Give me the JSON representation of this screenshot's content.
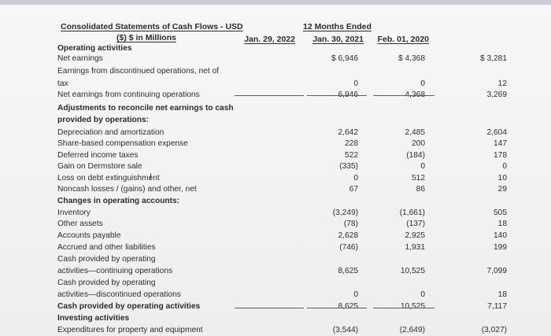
{
  "header": {
    "title_line1": "Consolidated Statements of Cash Flows - USD",
    "title_line2": "($) $ in Millions",
    "period_group": "12 Months Ended",
    "col1": "Jan. 29, 2022",
    "col2": "Jan. 30, 2021",
    "col3": "Feb. 01, 2020"
  },
  "rows": [
    {
      "label": "Operating activities",
      "bold": true,
      "c1": "",
      "c2": "",
      "c3": ""
    },
    {
      "label": "Net earnings",
      "bold": false,
      "c1": "$ 6,946",
      "c2": "$ 4,368",
      "c3": "$ 3,281"
    },
    {
      "label": "Earnings from discontinued operations, net of",
      "bold": false,
      "c1": "",
      "c2": "",
      "c3": ""
    },
    {
      "label": "tax",
      "bold": false,
      "c1": "0",
      "c2": "0",
      "c3": "12"
    },
    {
      "label": "Net earnings from continuing operations",
      "bold": false,
      "c1": "6,946",
      "c2": "4,368",
      "c3": "3,269"
    },
    {
      "label": "Adjustments to reconcile net earnings to cash",
      "bold": true,
      "c1": "",
      "c2": "",
      "c3": ""
    },
    {
      "label": "provided by operations:",
      "bold": true,
      "c1": "",
      "c2": "",
      "c3": ""
    },
    {
      "label": "Depreciation and amortization",
      "bold": false,
      "c1": "2,642",
      "c2": "2,485",
      "c3": "2,604"
    },
    {
      "label": "Share-based compensation expense",
      "bold": false,
      "c1": "228",
      "c2": "200",
      "c3": "147"
    },
    {
      "label": "Deferred income taxes",
      "bold": false,
      "c1": "522",
      "c2": "(184)",
      "c3": "178"
    },
    {
      "label": "Gain on Dermstore sale",
      "bold": false,
      "c1": "(335)",
      "c2": "0",
      "c3": "0"
    },
    {
      "label": "Loss on debt extinguishment",
      "bold": false,
      "c1": "0",
      "c2": "512",
      "c3": "10"
    },
    {
      "label": "Noncash losses / (gains) and other, net",
      "bold": false,
      "c1": "67",
      "c2": "86",
      "c3": "29"
    },
    {
      "label": "Changes in operating accounts:",
      "bold": true,
      "c1": "",
      "c2": "",
      "c3": ""
    },
    {
      "label": "Inventory",
      "bold": false,
      "c1": "(3,249)",
      "c2": "(1,661)",
      "c3": "505"
    },
    {
      "label": "Other assets",
      "bold": false,
      "c1": "(78)",
      "c2": "(137)",
      "c3": "18"
    },
    {
      "label": "Accounts payable",
      "bold": false,
      "c1": "2,628",
      "c2": "2,925",
      "c3": "140"
    },
    {
      "label": "Accrued and other liabilities",
      "bold": false,
      "c1": "(746)",
      "c2": "1,931",
      "c3": "199"
    },
    {
      "label": "Cash provided by operating",
      "bold": false,
      "c1": "",
      "c2": "",
      "c3": ""
    },
    {
      "label": "activities—continuing operations",
      "bold": false,
      "c1": "8,625",
      "c2": "10,525",
      "c3": "7,099"
    },
    {
      "label": "Cash provided by operating",
      "bold": false,
      "c1": "",
      "c2": "",
      "c3": ""
    },
    {
      "label": "activities—discontinued operations",
      "bold": false,
      "c1": "0",
      "c2": "0",
      "c3": "18"
    },
    {
      "label": "Cash provided by operating activities",
      "bold": true,
      "c1": "8,625",
      "c2": "10,525",
      "c3": "7,117"
    },
    {
      "label": "Investing activities",
      "bold": true,
      "c1": "",
      "c2": "",
      "c3": ""
    },
    {
      "label": "Expenditures for property and equipment",
      "bold": false,
      "c1": "(3,544)",
      "c2": "(2,649)",
      "c3": "(3,027)"
    }
  ]
}
